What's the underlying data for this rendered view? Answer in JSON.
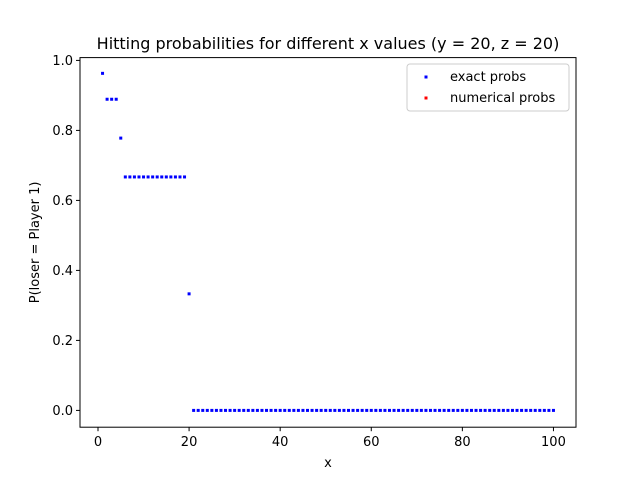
{
  "chart_data": {
    "type": "scatter",
    "title": "Hitting probabilities for different x values (y = 20, z = 20)",
    "xlabel": "x",
    "ylabel": "P(loser = Player 1)",
    "xlim": [
      -3.95,
      104.95
    ],
    "ylim": [
      -0.048,
      1.008
    ],
    "xticks": [
      0,
      20,
      40,
      60,
      80,
      100
    ],
    "yticks": [
      0.0,
      0.2,
      0.4,
      0.6,
      0.8,
      1.0
    ],
    "xtick_labels": [
      "0",
      "20",
      "40",
      "60",
      "80",
      "100"
    ],
    "ytick_labels": [
      "0.0",
      "0.2",
      "0.4",
      "0.6",
      "0.8",
      "1.0"
    ],
    "grid": false,
    "legend_position": "upper right",
    "series": [
      {
        "name": "exact probs",
        "color": "#0000ff",
        "x": [
          1,
          2,
          3,
          4,
          5,
          6,
          7,
          8,
          9,
          10,
          11,
          12,
          13,
          14,
          15,
          16,
          17,
          18,
          19,
          20,
          21,
          22,
          23,
          24,
          25,
          26,
          27,
          28,
          29,
          30,
          31,
          32,
          33,
          34,
          35,
          36,
          37,
          38,
          39,
          40,
          41,
          42,
          43,
          44,
          45,
          46,
          47,
          48,
          49,
          50,
          51,
          52,
          53,
          54,
          55,
          56,
          57,
          58,
          59,
          60,
          61,
          62,
          63,
          64,
          65,
          66,
          67,
          68,
          69,
          70,
          71,
          72,
          73,
          74,
          75,
          76,
          77,
          78,
          79,
          80,
          81,
          82,
          83,
          84,
          85,
          86,
          87,
          88,
          89,
          90,
          91,
          92,
          93,
          94,
          95,
          96,
          97,
          98,
          99,
          100
        ],
        "y": [
          0.963,
          0.889,
          0.889,
          0.889,
          0.778,
          0.667,
          0.667,
          0.667,
          0.667,
          0.667,
          0.667,
          0.667,
          0.667,
          0.667,
          0.667,
          0.667,
          0.667,
          0.667,
          0.667,
          0.333,
          0,
          0,
          0,
          0,
          0,
          0,
          0,
          0,
          0,
          0,
          0,
          0,
          0,
          0,
          0,
          0,
          0,
          0,
          0,
          0,
          0,
          0,
          0,
          0,
          0,
          0,
          0,
          0,
          0,
          0,
          0,
          0,
          0,
          0,
          0,
          0,
          0,
          0,
          0,
          0,
          0,
          0,
          0,
          0,
          0,
          0,
          0,
          0,
          0,
          0,
          0,
          0,
          0,
          0,
          0,
          0,
          0,
          0,
          0,
          0,
          0,
          0,
          0,
          0,
          0,
          0,
          0,
          0,
          0,
          0,
          0,
          0,
          0,
          0,
          0,
          0,
          0,
          0,
          0,
          0
        ]
      },
      {
        "name": "numerical probs",
        "color": "#ff0000",
        "x": [],
        "y": []
      }
    ]
  }
}
